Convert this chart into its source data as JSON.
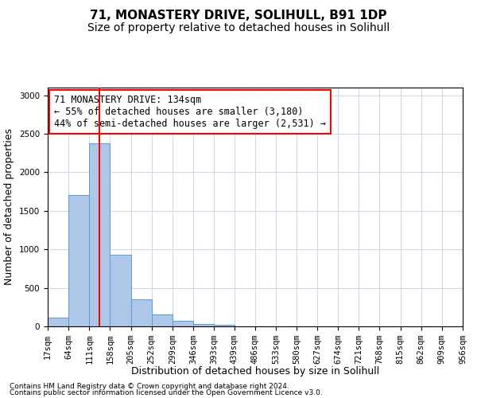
{
  "title": "71, MONASTERY DRIVE, SOLIHULL, B91 1DP",
  "subtitle": "Size of property relative to detached houses in Solihull",
  "xlabel": "Distribution of detached houses by size in Solihull",
  "ylabel": "Number of detached properties",
  "bin_edges": [
    17,
    64,
    111,
    158,
    205,
    252,
    299,
    346,
    393,
    439,
    486,
    533,
    580,
    627,
    674,
    721,
    768,
    815,
    862,
    909,
    956
  ],
  "bar_heights": [
    110,
    1700,
    2380,
    930,
    350,
    155,
    75,
    30,
    20,
    5,
    3,
    2,
    1,
    1,
    0,
    1,
    0,
    0,
    0,
    0
  ],
  "bar_color": "#aec6e8",
  "bar_edgecolor": "#5b9bd5",
  "property_size": 134,
  "redline_color": "red",
  "annotation_line1": "71 MONASTERY DRIVE: 134sqm",
  "annotation_line2": "← 55% of detached houses are smaller (3,180)",
  "annotation_line3": "44% of semi-detached houses are larger (2,531) →",
  "annotation_box_edgecolor": "red",
  "annotation_box_facecolor": "white",
  "footnote1": "Contains HM Land Registry data © Crown copyright and database right 2024.",
  "footnote2": "Contains public sector information licensed under the Open Government Licence v3.0.",
  "ylim": [
    0,
    3100
  ],
  "yticks": [
    0,
    500,
    1000,
    1500,
    2000,
    2500,
    3000
  ],
  "title_fontsize": 11,
  "subtitle_fontsize": 10,
  "axis_label_fontsize": 9,
  "tick_fontsize": 7.5,
  "annotation_fontsize": 8.5,
  "footnote_fontsize": 6.5,
  "background_color": "#ffffff",
  "grid_color": "#d0d8e8"
}
